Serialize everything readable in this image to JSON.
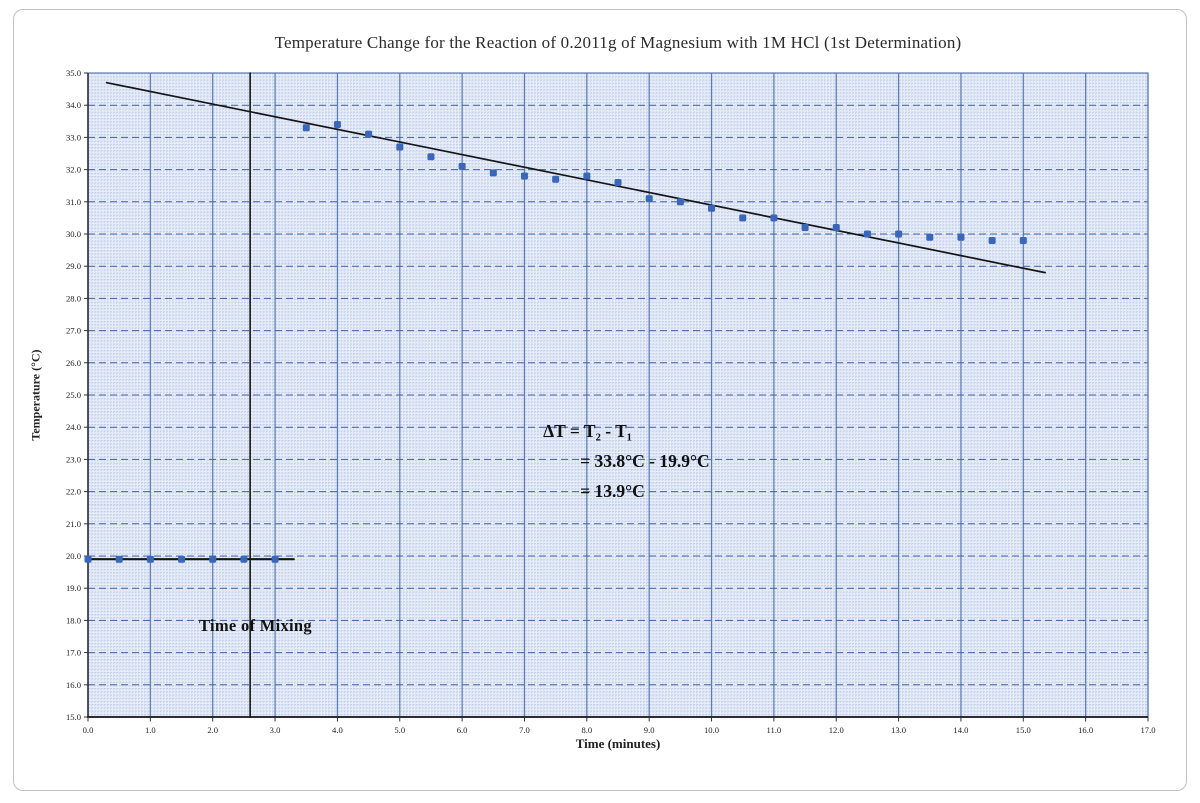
{
  "chart_data": {
    "type": "scatter",
    "title": "Temperature Change for the Reaction of 0.2011g of Magnesium with 1M HCl (1st Determination)",
    "xlabel": "Time (minutes)",
    "ylabel": "Temperature (°C)",
    "xlim": [
      0,
      17
    ],
    "ylim": [
      15,
      35
    ],
    "x_ticks": [
      "0.0",
      "1.0",
      "2.0",
      "3.0",
      "4.0",
      "5.0",
      "6.0",
      "7.0",
      "8.0",
      "9.0",
      "10.0",
      "11.0",
      "12.0",
      "13.0",
      "14.0",
      "15.0",
      "16.0",
      "17.0"
    ],
    "y_ticks": [
      "35.0",
      "34.0",
      "33.0",
      "32.0",
      "31.0",
      "30.0",
      "29.0",
      "28.0",
      "27.0",
      "26.0",
      "25.0",
      "24.0",
      "23.0",
      "22.0",
      "21.0",
      "20.0",
      "19.0",
      "18.0",
      "17.0",
      "16.0",
      "15.0"
    ],
    "grid": "graph-paper, fine grid with major lines every 1.0 unit",
    "legend": "none",
    "series": [
      {
        "name": "pre-mixing temperature readings",
        "points": [
          [
            0.0,
            19.9
          ],
          [
            0.5,
            19.9
          ],
          [
            1.0,
            19.9
          ],
          [
            1.5,
            19.9
          ],
          [
            2.0,
            19.9
          ],
          [
            2.5,
            19.9
          ],
          [
            3.0,
            19.9
          ]
        ]
      },
      {
        "name": "post-mixing cooling readings",
        "points": [
          [
            3.5,
            33.3
          ],
          [
            4.0,
            33.4
          ],
          [
            4.5,
            33.1
          ],
          [
            5.0,
            32.7
          ],
          [
            5.5,
            32.4
          ],
          [
            6.0,
            32.1
          ],
          [
            6.5,
            31.9
          ],
          [
            7.0,
            31.8
          ],
          [
            7.5,
            31.7
          ],
          [
            8.0,
            31.8
          ],
          [
            8.5,
            31.6
          ],
          [
            9.0,
            31.1
          ],
          [
            9.5,
            31.0
          ],
          [
            10.0,
            30.8
          ],
          [
            10.5,
            30.5
          ],
          [
            11.0,
            30.5
          ],
          [
            11.5,
            30.2
          ],
          [
            12.0,
            30.2
          ],
          [
            12.5,
            30.0
          ],
          [
            13.0,
            30.0
          ],
          [
            13.5,
            29.9
          ],
          [
            14.0,
            29.9
          ],
          [
            14.5,
            29.8
          ],
          [
            15.0,
            29.8
          ]
        ]
      }
    ],
    "lines": [
      {
        "name": "cooling-trendline",
        "x1": 0.3,
        "y1": 34.7,
        "x2": 15.35,
        "y2": 28.8
      },
      {
        "name": "initial-temperature-line",
        "x1": 0.0,
        "y1": 19.9,
        "x2": 3.3,
        "y2": 19.9
      },
      {
        "name": "time-of-mixing-line",
        "x1": 2.6,
        "y1": 15.0,
        "x2": 2.6,
        "y2": 35.0
      }
    ],
    "annotations": [
      {
        "name": "delta-t-calculation",
        "x": 7.3,
        "y": 24.35,
        "lines": [
          "ΔT = T₂ - T₁",
          "= 33.8°C - 19.9°C",
          "= 13.9°C"
        ]
      },
      {
        "name": "time-of-mixing-label",
        "x": 1.78,
        "y": 18.15,
        "lines": [
          "Time of Mixing"
        ]
      }
    ],
    "colors": {
      "marker": "#3a67ba",
      "plot_background": "#e9eef9",
      "fine_grid": "#b6c7e7",
      "major_grid_vertical": "#5b79b4",
      "major_grid_horizontal": "#44629f",
      "axis_and_overlay_lines": "#151515",
      "text": "#222222",
      "frame_border": "#c2c2c2"
    }
  }
}
